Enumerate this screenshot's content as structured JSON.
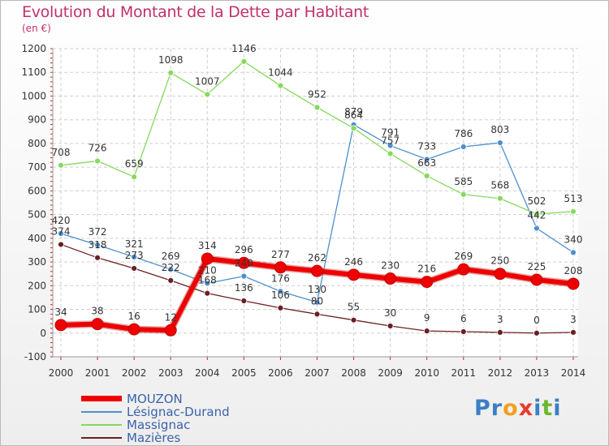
{
  "title": "Evolution du Montant de la Dette par Habitant",
  "unit": "(en €)",
  "chart_data": {
    "type": "line",
    "title": "Evolution du Montant de la Dette par Habitant",
    "subtitle": "(en €)",
    "xlabel": "",
    "ylabel": "",
    "x": [
      "2000",
      "2001",
      "2002",
      "2003",
      "2004",
      "2005",
      "2006",
      "2007",
      "2008",
      "2009",
      "2010",
      "2011",
      "2012",
      "2013",
      "2014"
    ],
    "ylim": [
      -100,
      1200
    ],
    "yticks": [
      -100,
      0,
      100,
      200,
      300,
      400,
      500,
      600,
      700,
      800,
      900,
      1000,
      1100,
      1200
    ],
    "grid": "horizontal dashed",
    "legend": "bottom-left",
    "series": [
      {
        "name": "Mazières",
        "color": "#6b1f24",
        "values": [
          374,
          318,
          273,
          222,
          168,
          136,
          106,
          80,
          55,
          30,
          9,
          6,
          3,
          0,
          3
        ]
      },
      {
        "name": "Lésignac-Durand",
        "color": "#4e8fcc",
        "values": [
          420,
          372,
          321,
          269,
          210,
          240,
          176,
          130,
          879,
          791,
          733,
          786,
          803,
          442,
          340
        ]
      },
      {
        "name": "Massignac",
        "color": "#86d95b",
        "values": [
          708,
          726,
          659,
          1098,
          1007,
          1146,
          1044,
          952,
          864,
          757,
          663,
          585,
          568,
          502,
          513
        ]
      },
      {
        "name": "MOUZON",
        "color": "#ee0000",
        "values": [
          34,
          38,
          16,
          12,
          314,
          296,
          277,
          262,
          246,
          230,
          216,
          269,
          250,
          225,
          208
        ]
      }
    ],
    "legend_order": [
      "MOUZON",
      "Lésignac-Durand",
      "Massignac",
      "Mazières"
    ]
  },
  "logo": {
    "letters": [
      "P",
      "r",
      "o",
      "x",
      "i",
      "t",
      "i"
    ],
    "colors": [
      "#3b7fc4",
      "#3b7fc4",
      "#f0a020",
      "#e83a2a",
      "#3b7fc4",
      "#6ab82e",
      "#3b7fc4"
    ]
  }
}
